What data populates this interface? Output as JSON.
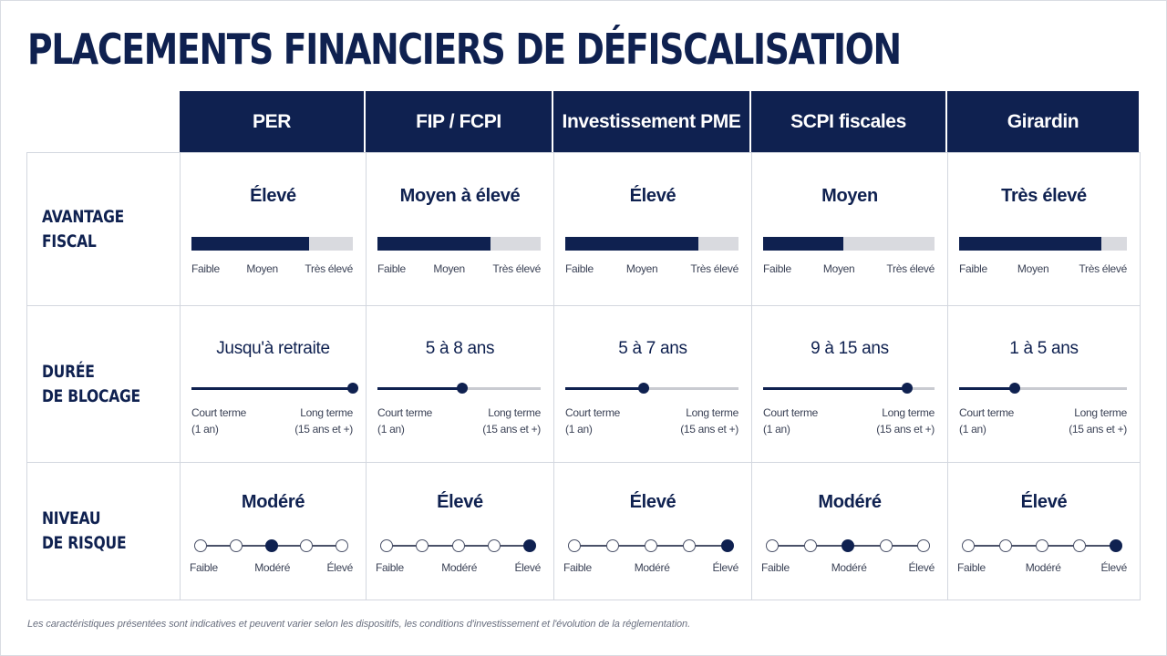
{
  "title": "PLACEMENTS FINANCIERS DE DÉFISCALISATION",
  "columns": [
    "PER",
    "FIP / FCPI",
    "Investissement PME",
    "SCPI fiscales",
    "Girardin"
  ],
  "rows": {
    "fiscal": {
      "label": "AVANTAGE FISCAL",
      "scale": [
        "Faible",
        "Moyen",
        "Très élevé"
      ],
      "values": [
        "Élevé",
        "Moyen à élevé",
        "Élevé",
        "Moyen",
        "Très élevé"
      ],
      "levels": [
        0.73,
        0.69,
        0.77,
        0.47,
        0.85
      ]
    },
    "duration": {
      "label": "DURÉE\nDE BLOCAGE",
      "start_label": "Court terme",
      "start_sub": "(1 an)",
      "end_label": "Long terme",
      "end_sub": "(15 ans et +)",
      "values": [
        "Jusqu'à retraite",
        "5 à 8 ans",
        "5 à 7 ans",
        "9 à 15 ans",
        "1 à 5 ans"
      ],
      "levels": [
        1.0,
        0.52,
        0.45,
        0.84,
        0.33
      ]
    },
    "risk": {
      "label": "NIVEAU\nDE RISQUE",
      "scale": [
        "Faible",
        "Modéré",
        "Élevé"
      ],
      "values": [
        "Modéré",
        "Élevé",
        "Élevé",
        "Modéré",
        "Élevé"
      ],
      "levels": [
        3,
        5,
        5,
        3,
        5
      ],
      "steps": 5
    }
  },
  "colors": {
    "navy": "#0f2150",
    "track": "#d9dadf",
    "border": "#d3d7df"
  },
  "footnote": "Les caractéristiques présentées sont indicatives et peuvent varier selon les dispositifs, les conditions d'investissement et l'évolution de la réglementation."
}
